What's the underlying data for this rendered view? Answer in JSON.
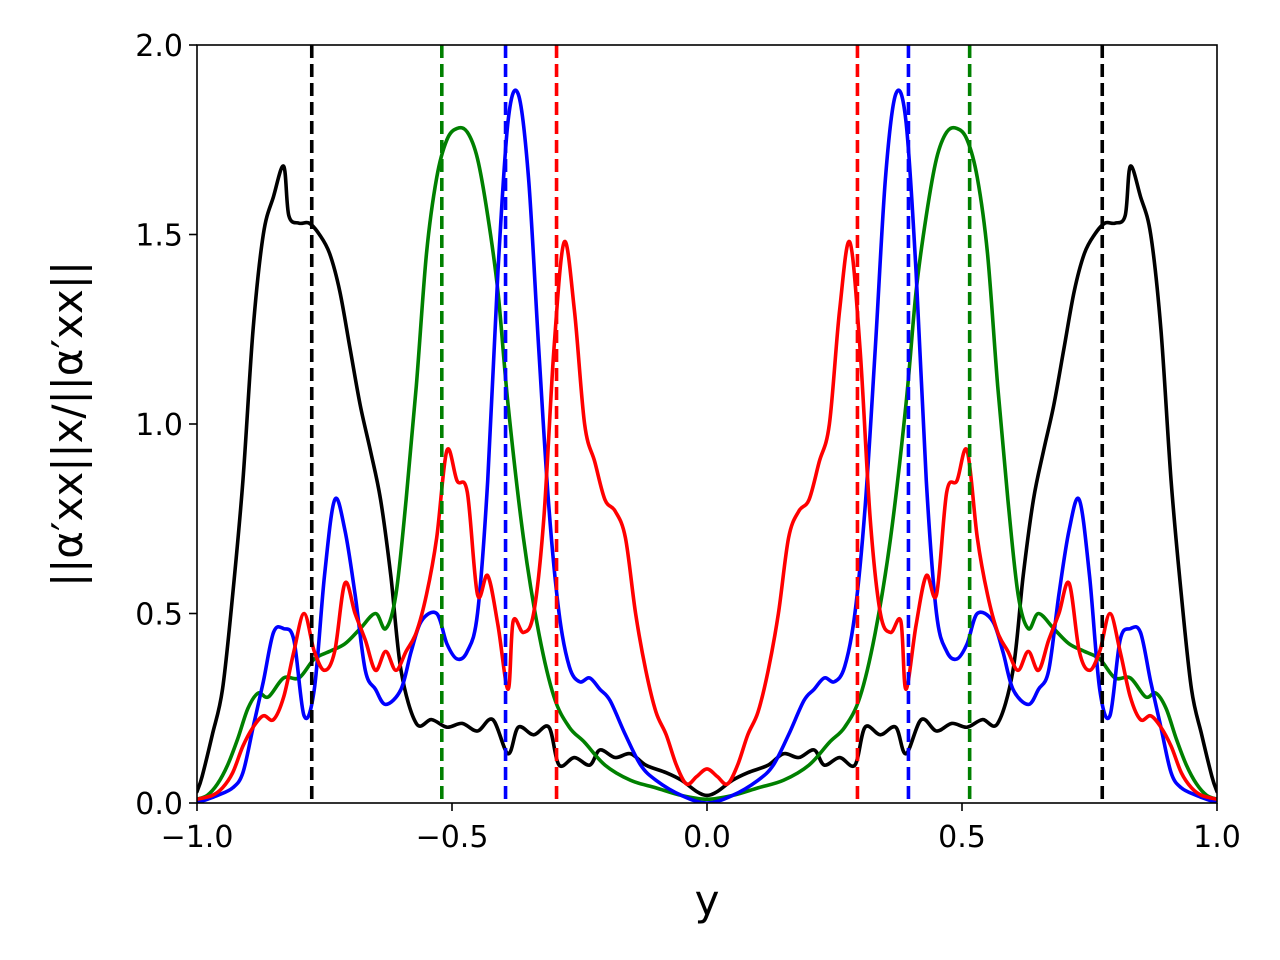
{
  "chart_data": {
    "type": "line",
    "title": "",
    "xlabel": "y",
    "ylabel": "||α′xx||x/||α′xx||",
    "xlim": [
      -1.0,
      1.0
    ],
    "ylim": [
      0.0,
      2.0
    ],
    "xticks": [
      -1.0,
      -0.5,
      0.0,
      0.5,
      1.0
    ],
    "xtick_labels": [
      "−1.0",
      "−0.5",
      "0.0",
      "0.5",
      "1.0"
    ],
    "yticks": [
      0.0,
      0.5,
      1.0,
      1.5,
      2.0
    ],
    "ytick_labels": [
      "0.0",
      "0.5",
      "1.0",
      "1.5",
      "2.0"
    ],
    "grid": false,
    "legend": "none",
    "symmetric_about_zero": true,
    "series": [
      {
        "color": "#000000",
        "half_points": [
          [
            0.0,
            0.02
          ],
          [
            0.02,
            0.03
          ],
          [
            0.05,
            0.06
          ],
          [
            0.08,
            0.08
          ],
          [
            0.12,
            0.1
          ],
          [
            0.15,
            0.13
          ],
          [
            0.18,
            0.12
          ],
          [
            0.21,
            0.14
          ],
          [
            0.23,
            0.1
          ],
          [
            0.26,
            0.12
          ],
          [
            0.29,
            0.1
          ],
          [
            0.31,
            0.2
          ],
          [
            0.34,
            0.18
          ],
          [
            0.37,
            0.2
          ],
          [
            0.39,
            0.13
          ],
          [
            0.42,
            0.22
          ],
          [
            0.45,
            0.19
          ],
          [
            0.48,
            0.21
          ],
          [
            0.51,
            0.2
          ],
          [
            0.54,
            0.22
          ],
          [
            0.57,
            0.21
          ],
          [
            0.6,
            0.35
          ],
          [
            0.62,
            0.6
          ],
          [
            0.64,
            0.8
          ],
          [
            0.66,
            0.93
          ],
          [
            0.68,
            1.05
          ],
          [
            0.7,
            1.2
          ],
          [
            0.72,
            1.35
          ],
          [
            0.74,
            1.45
          ],
          [
            0.76,
            1.5
          ],
          [
            0.78,
            1.53
          ],
          [
            0.8,
            1.53
          ],
          [
            0.82,
            1.55
          ],
          [
            0.83,
            1.68
          ],
          [
            0.85,
            1.6
          ],
          [
            0.87,
            1.5
          ],
          [
            0.89,
            1.25
          ],
          [
            0.91,
            0.85
          ],
          [
            0.93,
            0.55
          ],
          [
            0.95,
            0.3
          ],
          [
            0.97,
            0.18
          ],
          [
            0.99,
            0.07
          ],
          [
            1.0,
            0.03
          ]
        ]
      },
      {
        "color": "#008000",
        "half_points": [
          [
            0.0,
            0.01
          ],
          [
            0.05,
            0.02
          ],
          [
            0.1,
            0.04
          ],
          [
            0.15,
            0.06
          ],
          [
            0.2,
            0.1
          ],
          [
            0.24,
            0.16
          ],
          [
            0.27,
            0.2
          ],
          [
            0.3,
            0.28
          ],
          [
            0.33,
            0.45
          ],
          [
            0.36,
            0.7
          ],
          [
            0.39,
            1.05
          ],
          [
            0.41,
            1.35
          ],
          [
            0.43,
            1.55
          ],
          [
            0.45,
            1.7
          ],
          [
            0.47,
            1.77
          ],
          [
            0.49,
            1.78
          ],
          [
            0.51,
            1.75
          ],
          [
            0.53,
            1.65
          ],
          [
            0.55,
            1.45
          ],
          [
            0.57,
            1.1
          ],
          [
            0.59,
            0.8
          ],
          [
            0.61,
            0.55
          ],
          [
            0.63,
            0.46
          ],
          [
            0.65,
            0.5
          ],
          [
            0.68,
            0.46
          ],
          [
            0.71,
            0.42
          ],
          [
            0.74,
            0.4
          ],
          [
            0.77,
            0.38
          ],
          [
            0.8,
            0.33
          ],
          [
            0.83,
            0.33
          ],
          [
            0.86,
            0.28
          ],
          [
            0.88,
            0.29
          ],
          [
            0.9,
            0.25
          ],
          [
            0.92,
            0.17
          ],
          [
            0.94,
            0.1
          ],
          [
            0.96,
            0.05
          ],
          [
            0.98,
            0.02
          ],
          [
            1.0,
            0.01
          ]
        ]
      },
      {
        "color": "#0000ff",
        "half_points": [
          [
            0.0,
            0.0
          ],
          [
            0.05,
            0.02
          ],
          [
            0.1,
            0.06
          ],
          [
            0.13,
            0.1
          ],
          [
            0.16,
            0.18
          ],
          [
            0.19,
            0.27
          ],
          [
            0.21,
            0.3
          ],
          [
            0.23,
            0.33
          ],
          [
            0.25,
            0.32
          ],
          [
            0.27,
            0.36
          ],
          [
            0.29,
            0.5
          ],
          [
            0.31,
            0.78
          ],
          [
            0.33,
            1.2
          ],
          [
            0.35,
            1.65
          ],
          [
            0.37,
            1.87
          ],
          [
            0.39,
            1.8
          ],
          [
            0.41,
            1.4
          ],
          [
            0.43,
            0.85
          ],
          [
            0.45,
            0.5
          ],
          [
            0.47,
            0.4
          ],
          [
            0.49,
            0.38
          ],
          [
            0.51,
            0.42
          ],
          [
            0.53,
            0.5
          ],
          [
            0.56,
            0.48
          ],
          [
            0.58,
            0.4
          ],
          [
            0.6,
            0.3
          ],
          [
            0.63,
            0.26
          ],
          [
            0.65,
            0.3
          ],
          [
            0.67,
            0.35
          ],
          [
            0.69,
            0.55
          ],
          [
            0.71,
            0.72
          ],
          [
            0.73,
            0.8
          ],
          [
            0.75,
            0.6
          ],
          [
            0.77,
            0.3
          ],
          [
            0.79,
            0.23
          ],
          [
            0.81,
            0.43
          ],
          [
            0.83,
            0.46
          ],
          [
            0.85,
            0.45
          ],
          [
            0.87,
            0.32
          ],
          [
            0.89,
            0.2
          ],
          [
            0.91,
            0.08
          ],
          [
            0.93,
            0.04
          ],
          [
            0.96,
            0.02
          ],
          [
            1.0,
            0.0
          ]
        ]
      },
      {
        "color": "#ff0000",
        "half_points": [
          [
            0.0,
            0.09
          ],
          [
            0.02,
            0.07
          ],
          [
            0.04,
            0.05
          ],
          [
            0.06,
            0.1
          ],
          [
            0.08,
            0.18
          ],
          [
            0.1,
            0.24
          ],
          [
            0.12,
            0.35
          ],
          [
            0.14,
            0.5
          ],
          [
            0.16,
            0.7
          ],
          [
            0.18,
            0.77
          ],
          [
            0.2,
            0.8
          ],
          [
            0.22,
            0.9
          ],
          [
            0.24,
            1.0
          ],
          [
            0.26,
            1.3
          ],
          [
            0.28,
            1.48
          ],
          [
            0.3,
            1.2
          ],
          [
            0.32,
            0.75
          ],
          [
            0.34,
            0.5
          ],
          [
            0.36,
            0.45
          ],
          [
            0.38,
            0.48
          ],
          [
            0.39,
            0.3
          ],
          [
            0.41,
            0.47
          ],
          [
            0.43,
            0.6
          ],
          [
            0.45,
            0.55
          ],
          [
            0.47,
            0.82
          ],
          [
            0.49,
            0.85
          ],
          [
            0.51,
            0.93
          ],
          [
            0.53,
            0.7
          ],
          [
            0.55,
            0.55
          ],
          [
            0.57,
            0.45
          ],
          [
            0.59,
            0.4
          ],
          [
            0.61,
            0.35
          ],
          [
            0.63,
            0.4
          ],
          [
            0.65,
            0.35
          ],
          [
            0.67,
            0.43
          ],
          [
            0.69,
            0.5
          ],
          [
            0.71,
            0.58
          ],
          [
            0.73,
            0.4
          ],
          [
            0.75,
            0.35
          ],
          [
            0.77,
            0.4
          ],
          [
            0.79,
            0.5
          ],
          [
            0.81,
            0.4
          ],
          [
            0.83,
            0.28
          ],
          [
            0.85,
            0.22
          ],
          [
            0.87,
            0.23
          ],
          [
            0.89,
            0.2
          ],
          [
            0.91,
            0.15
          ],
          [
            0.93,
            0.08
          ],
          [
            0.95,
            0.04
          ],
          [
            0.97,
            0.02
          ],
          [
            1.0,
            0.01
          ]
        ]
      }
    ],
    "vlines": [
      {
        "x": -0.775,
        "color": "#000000"
      },
      {
        "x": -0.52,
        "color": "#008000"
      },
      {
        "x": -0.395,
        "color": "#0000ff"
      },
      {
        "x": -0.295,
        "color": "#ff0000"
      },
      {
        "x": 0.295,
        "color": "#ff0000"
      },
      {
        "x": 0.395,
        "color": "#0000ff"
      },
      {
        "x": 0.515,
        "color": "#008000"
      },
      {
        "x": 0.775,
        "color": "#000000"
      }
    ]
  }
}
